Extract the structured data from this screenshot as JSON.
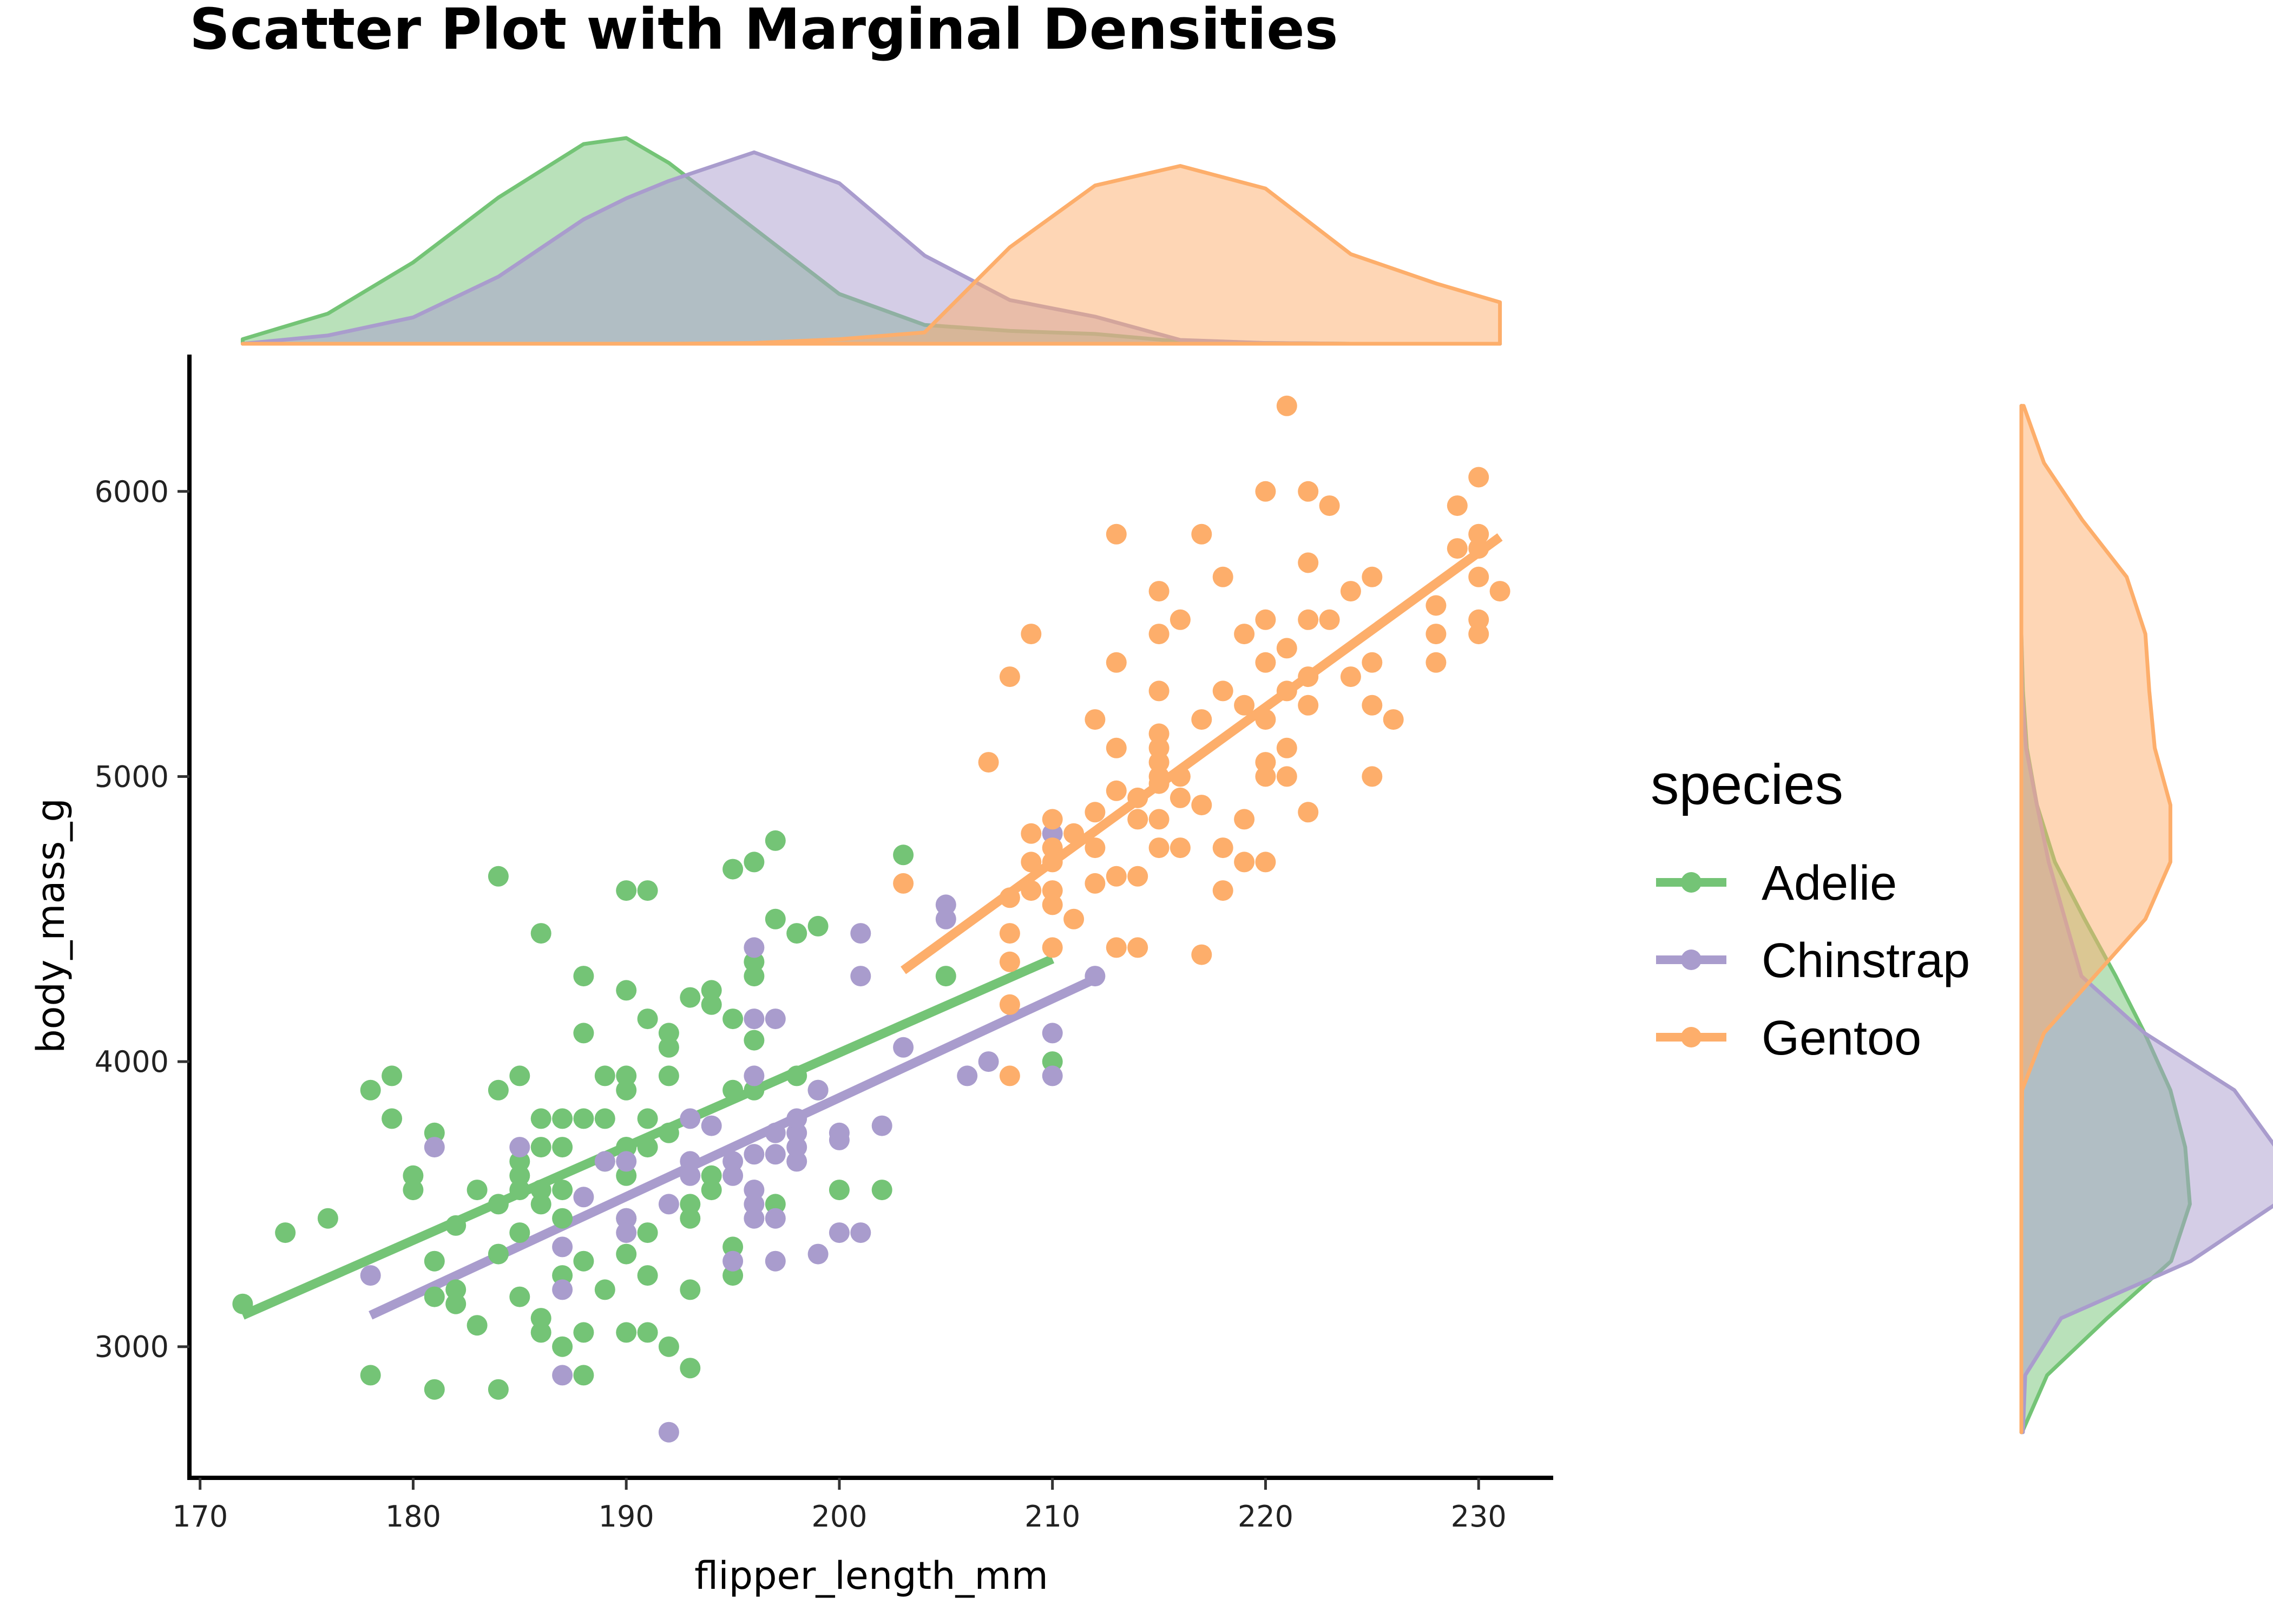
{
  "chart_data": {
    "type": "scatter",
    "title": "Scatter Plot with Marginal Densities",
    "xlabel": "flipper_length_mm",
    "ylabel": "body_mass_g",
    "xlim": [
      169.5,
      233.5
    ],
    "ylim": [
      2540,
      6480
    ],
    "xticks": [
      170,
      180,
      190,
      200,
      210,
      220,
      230
    ],
    "yticks": [
      3000,
      4000,
      5000,
      6000
    ],
    "grid": false,
    "legend": {
      "title": "species",
      "position": "right"
    },
    "series": [
      {
        "name": "Adelie",
        "color": "#74c476",
        "fit": {
          "x1": 172,
          "y1": 3110,
          "x2": 210,
          "y2": 4360
        },
        "points": [
          [
            172,
            3150
          ],
          [
            174,
            3400
          ],
          [
            176,
            3450
          ],
          [
            178,
            3900
          ],
          [
            178,
            2900
          ],
          [
            179,
            3950
          ],
          [
            179,
            3800
          ],
          [
            180,
            3550
          ],
          [
            180,
            3600
          ],
          [
            181,
            3750
          ],
          [
            181,
            3300
          ],
          [
            181,
            3175
          ],
          [
            181,
            2850
          ],
          [
            182,
            3200
          ],
          [
            182,
            3150
          ],
          [
            182,
            3425
          ],
          [
            183,
            3075
          ],
          [
            183,
            3550
          ],
          [
            184,
            3325
          ],
          [
            184,
            3500
          ],
          [
            184,
            3900
          ],
          [
            184,
            2850
          ],
          [
            184,
            4650
          ],
          [
            185,
            3550
          ],
          [
            185,
            3950
          ],
          [
            185,
            3400
          ],
          [
            185,
            3600
          ],
          [
            185,
            3650
          ],
          [
            185,
            3175
          ],
          [
            186,
            3800
          ],
          [
            186,
            3500
          ],
          [
            186,
            3100
          ],
          [
            186,
            3050
          ],
          [
            186,
            3550
          ],
          [
            186,
            4450
          ],
          [
            187,
            3250
          ],
          [
            187,
            3450
          ],
          [
            187,
            3700
          ],
          [
            187,
            3800
          ],
          [
            187,
            3550
          ],
          [
            187,
            3000
          ],
          [
            188,
            3300
          ],
          [
            188,
            4300
          ],
          [
            188,
            3050
          ],
          [
            188,
            4100
          ],
          [
            188,
            2900
          ],
          [
            189,
            3200
          ],
          [
            189,
            3650
          ],
          [
            189,
            3950
          ],
          [
            189,
            3800
          ],
          [
            190,
            3050
          ],
          [
            190,
            4600
          ],
          [
            190,
            3950
          ],
          [
            190,
            3450
          ],
          [
            190,
            3700
          ],
          [
            190,
            3325
          ],
          [
            190,
            4250
          ],
          [
            190,
            3900
          ],
          [
            190,
            3600
          ],
          [
            191,
            3800
          ],
          [
            191,
            4600
          ],
          [
            191,
            3050
          ],
          [
            191,
            4150
          ],
          [
            191,
            3700
          ],
          [
            191,
            3400
          ],
          [
            191,
            3250
          ],
          [
            192,
            3000
          ],
          [
            192,
            3950
          ],
          [
            192,
            4050
          ],
          [
            192,
            4100
          ],
          [
            192,
            3750
          ],
          [
            193,
            3200
          ],
          [
            193,
            2925
          ],
          [
            193,
            3450
          ],
          [
            193,
            3500
          ],
          [
            193,
            4225
          ],
          [
            194,
            4200
          ],
          [
            194,
            3550
          ],
          [
            194,
            4250
          ],
          [
            195,
            3350
          ],
          [
            195,
            3250
          ],
          [
            195,
            3900
          ],
          [
            195,
            4150
          ],
          [
            195,
            4675
          ],
          [
            196,
            4350
          ],
          [
            196,
            4300
          ],
          [
            196,
            4700
          ],
          [
            196,
            4075
          ],
          [
            196,
            3900
          ],
          [
            197,
            4500
          ],
          [
            197,
            4775
          ],
          [
            197,
            3500
          ],
          [
            198,
            4450
          ],
          [
            198,
            3950
          ],
          [
            199,
            4475
          ],
          [
            199,
            3900
          ],
          [
            200,
            3550
          ],
          [
            202,
            3550
          ],
          [
            203,
            4725
          ],
          [
            205,
            4300
          ],
          [
            210,
            4000
          ],
          [
            190,
            3700
          ],
          [
            186,
            3700
          ],
          [
            188,
            3800
          ],
          [
            194,
            3600
          ]
        ]
      },
      {
        "name": "Chinstrap",
        "color": "#a99ccd",
        "fit": {
          "x1": 178,
          "y1": 3110,
          "x2": 212,
          "y2": 4290
        },
        "points": [
          [
            178,
            3250
          ],
          [
            181,
            3700
          ],
          [
            185,
            3700
          ],
          [
            187,
            2900
          ],
          [
            187,
            3350
          ],
          [
            187,
            3200
          ],
          [
            188,
            3525
          ],
          [
            189,
            3650
          ],
          [
            190,
            3450
          ],
          [
            190,
            3400
          ],
          [
            190,
            3650
          ],
          [
            192,
            2700
          ],
          [
            192,
            3500
          ],
          [
            193,
            3650
          ],
          [
            193,
            3800
          ],
          [
            193,
            3600
          ],
          [
            194,
            3775
          ],
          [
            195,
            3600
          ],
          [
            195,
            3650
          ],
          [
            195,
            3300
          ],
          [
            196,
            3500
          ],
          [
            196,
            3550
          ],
          [
            196,
            3675
          ],
          [
            196,
            3450
          ],
          [
            196,
            3950
          ],
          [
            196,
            4150
          ],
          [
            196,
            4400
          ],
          [
            197,
            3300
          ],
          [
            197,
            3450
          ],
          [
            197,
            3675
          ],
          [
            197,
            3750
          ],
          [
            197,
            4150
          ],
          [
            198,
            3750
          ],
          [
            198,
            3650
          ],
          [
            198,
            3700
          ],
          [
            198,
            3800
          ],
          [
            199,
            3900
          ],
          [
            199,
            3325
          ],
          [
            200,
            3400
          ],
          [
            200,
            3750
          ],
          [
            201,
            3400
          ],
          [
            201,
            4450
          ],
          [
            201,
            4300
          ],
          [
            202,
            3775
          ],
          [
            203,
            4050
          ],
          [
            205,
            4500
          ],
          [
            205,
            4550
          ],
          [
            206,
            3950
          ],
          [
            207,
            4000
          ],
          [
            210,
            3950
          ],
          [
            210,
            4100
          ],
          [
            210,
            4800
          ],
          [
            212,
            4300
          ],
          [
            200,
            3725
          ]
        ]
      },
      {
        "name": "Gentoo",
        "color": "#fdae6b",
        "fit": {
          "x1": 203,
          "y1": 4320,
          "x2": 231,
          "y2": 5840
        },
        "points": [
          [
            203,
            4625
          ],
          [
            207,
            5050
          ],
          [
            208,
            3950
          ],
          [
            208,
            4200
          ],
          [
            208,
            4350
          ],
          [
            208,
            4450
          ],
          [
            208,
            4575
          ],
          [
            208,
            5350
          ],
          [
            209,
            4600
          ],
          [
            209,
            4700
          ],
          [
            209,
            4800
          ],
          [
            209,
            5500
          ],
          [
            210,
            4400
          ],
          [
            210,
            4550
          ],
          [
            210,
            4600
          ],
          [
            210,
            4700
          ],
          [
            210,
            4750
          ],
          [
            210,
            4850
          ],
          [
            211,
            4500
          ],
          [
            211,
            4800
          ],
          [
            212,
            4625
          ],
          [
            212,
            4750
          ],
          [
            212,
            4875
          ],
          [
            212,
            5200
          ],
          [
            213,
            4400
          ],
          [
            213,
            4650
          ],
          [
            213,
            4950
          ],
          [
            213,
            5100
          ],
          [
            213,
            5400
          ],
          [
            213,
            5850
          ],
          [
            214,
            4400
          ],
          [
            214,
            4650
          ],
          [
            214,
            4850
          ],
          [
            214,
            4925
          ],
          [
            215,
            4750
          ],
          [
            215,
            4850
          ],
          [
            215,
            4975
          ],
          [
            215,
            5000
          ],
          [
            215,
            5050
          ],
          [
            215,
            5100
          ],
          [
            215,
            5150
          ],
          [
            215,
            5300
          ],
          [
            215,
            5500
          ],
          [
            215,
            5650
          ],
          [
            216,
            4750
          ],
          [
            216,
            4925
          ],
          [
            216,
            5000
          ],
          [
            216,
            5550
          ],
          [
            217,
            4375
          ],
          [
            217,
            4900
          ],
          [
            217,
            5200
          ],
          [
            217,
            5850
          ],
          [
            218,
            4600
          ],
          [
            218,
            4750
          ],
          [
            218,
            5300
          ],
          [
            218,
            5700
          ],
          [
            219,
            4700
          ],
          [
            219,
            4850
          ],
          [
            219,
            5250
          ],
          [
            219,
            5500
          ],
          [
            220,
            4700
          ],
          [
            220,
            5000
          ],
          [
            220,
            5050
          ],
          [
            220,
            5200
          ],
          [
            220,
            5400
          ],
          [
            220,
            5550
          ],
          [
            220,
            6000
          ],
          [
            221,
            5000
          ],
          [
            221,
            5100
          ],
          [
            221,
            5300
          ],
          [
            221,
            5450
          ],
          [
            221,
            6300
          ],
          [
            222,
            4875
          ],
          [
            222,
            5250
          ],
          [
            222,
            5350
          ],
          [
            222,
            5550
          ],
          [
            222,
            5750
          ],
          [
            222,
            6000
          ],
          [
            223,
            5550
          ],
          [
            223,
            5950
          ],
          [
            224,
            5350
          ],
          [
            224,
            5650
          ],
          [
            225,
            5000
          ],
          [
            225,
            5250
          ],
          [
            225,
            5400
          ],
          [
            225,
            5700
          ],
          [
            226,
            5200
          ],
          [
            228,
            5400
          ],
          [
            228,
            5500
          ],
          [
            228,
            5600
          ],
          [
            229,
            5800
          ],
          [
            229,
            5950
          ],
          [
            230,
            5500
          ],
          [
            230,
            5550
          ],
          [
            230,
            5700
          ],
          [
            230,
            5800
          ],
          [
            230,
            5850
          ],
          [
            230,
            6050
          ],
          [
            231,
            5650
          ]
        ]
      }
    ],
    "marginal_x_density": {
      "x": [
        172,
        176,
        180,
        184,
        188,
        190,
        192,
        196,
        200,
        204,
        208,
        212,
        216,
        220,
        224,
        228,
        231
      ],
      "Adelie": [
        0.06,
        0.4,
        1.08,
        1.94,
        2.65,
        2.73,
        2.4,
        1.53,
        0.66,
        0.25,
        0.17,
        0.13,
        0.03,
        0.01,
        0,
        0,
        0
      ],
      "Chinstrap": [
        0.0,
        0.11,
        0.35,
        0.89,
        1.65,
        1.93,
        2.16,
        2.54,
        2.13,
        1.17,
        0.58,
        0.36,
        0.05,
        0.01,
        0,
        0,
        0
      ],
      "Gentoo": [
        0,
        0,
        0,
        0,
        0,
        0,
        0,
        0.01,
        0.06,
        0.15,
        1.28,
        2.1,
        2.36,
        2.06,
        1.19,
        0.8,
        0.55
      ]
    },
    "marginal_y_density": {
      "y": [
        2700,
        2900,
        3100,
        3300,
        3500,
        3700,
        3900,
        4100,
        4300,
        4500,
        4700,
        4900,
        5100,
        5300,
        5500,
        5700,
        5900,
        6100,
        6300
      ],
      "Adelie": [
        0.01,
        0.33,
        1.1,
        1.92,
        2.16,
        2.1,
        1.91,
        1.58,
        1.21,
        0.81,
        0.43,
        0.2,
        0.07,
        0.02,
        0,
        0,
        0,
        0,
        0
      ],
      "Chinstrap": [
        0.02,
        0.05,
        0.51,
        2.17,
        3.26,
        3.26,
        2.73,
        1.58,
        0.77,
        0.56,
        0.35,
        0.2,
        0.06,
        0.01,
        0,
        0,
        0,
        0,
        0
      ],
      "Gentoo": [
        0,
        0,
        0,
        0,
        0,
        0,
        0.01,
        0.29,
        0.94,
        1.59,
        1.91,
        1.91,
        1.71,
        1.64,
        1.59,
        1.35,
        0.78,
        0.29,
        0.03
      ]
    }
  }
}
